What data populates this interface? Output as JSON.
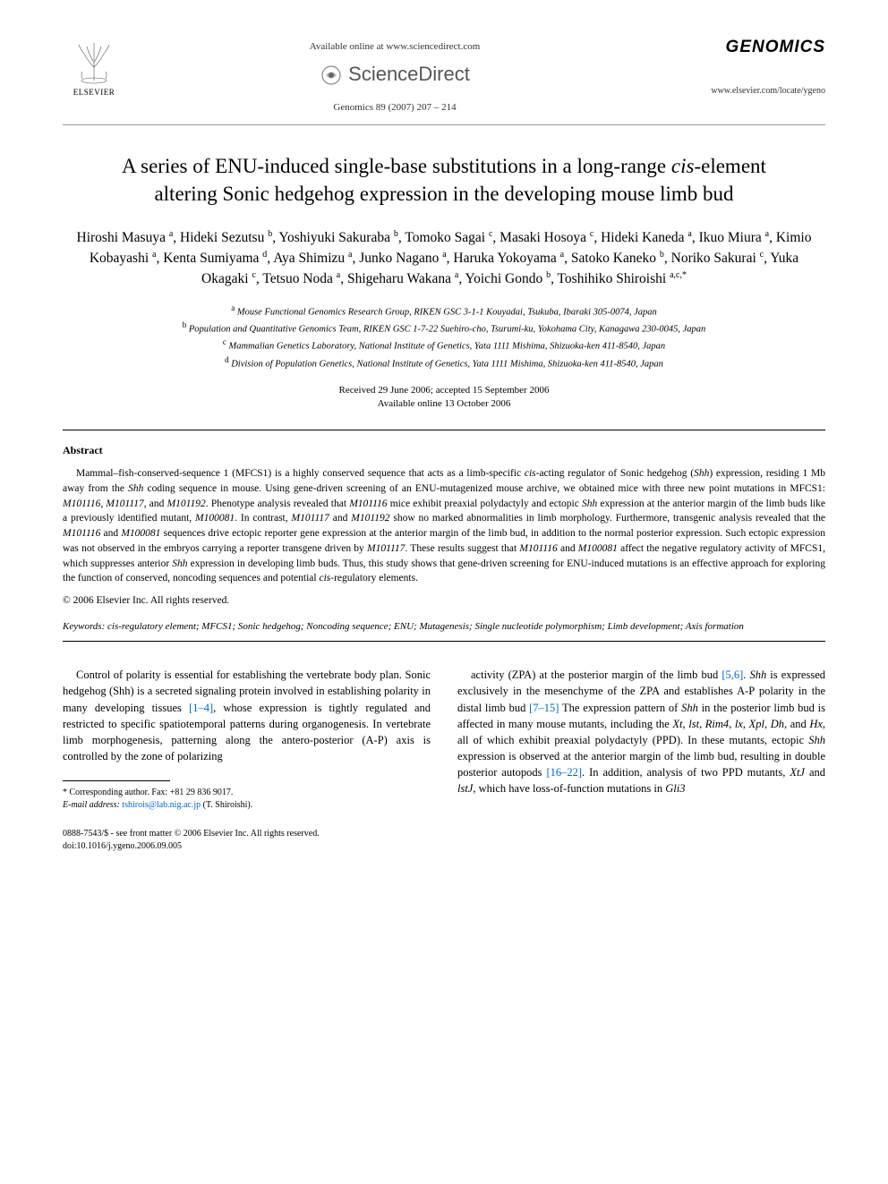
{
  "header": {
    "elsevier": "ELSEVIER",
    "available": "Available online at www.sciencedirect.com",
    "sd_name": "ScienceDirect",
    "journal_ref": "Genomics 89 (2007) 207 – 214",
    "journal_name": "GENOMICS",
    "journal_url": "www.elsevier.com/locate/ygeno"
  },
  "title_parts": {
    "pre": "A series of ENU-induced single-base substitutions in a long-range ",
    "ital": "cis",
    "post": "-element altering Sonic hedgehog expression in the developing mouse limb bud"
  },
  "authors_html": "Hiroshi Masuya <sup>a</sup>, Hideki Sezutsu <sup>b</sup>, Yoshiyuki Sakuraba <sup>b</sup>, Tomoko Sagai <sup>c</sup>, Masaki Hosoya <sup>c</sup>, Hideki Kaneda <sup>a</sup>, Ikuo Miura <sup>a</sup>, Kimio Kobayashi <sup>a</sup>, Kenta Sumiyama <sup>d</sup>, Aya Shimizu <sup>a</sup>, Junko Nagano <sup>a</sup>, Haruka Yokoyama <sup>a</sup>, Satoko Kaneko <sup>b</sup>, Noriko Sakurai <sup>c</sup>, Yuka Okagaki <sup>c</sup>, Tetsuo Noda <sup>a</sup>, Shigeharu Wakana <sup>a</sup>, Yoichi Gondo <sup>b</sup>, Toshihiko Shiroishi <sup>a,c,*</sup>",
  "affiliations": [
    {
      "sup": "a",
      "text": "Mouse Functional Genomics Research Group, RIKEN GSC 3-1-1 Kouyadai, Tsukuba, Ibaraki 305-0074, Japan"
    },
    {
      "sup": "b",
      "text": "Population and Quantitative Genomics Team, RIKEN GSC 1-7-22 Suehiro-cho, Tsurumi-ku, Yokohama City, Kanagawa 230-0045, Japan"
    },
    {
      "sup": "c",
      "text": "Mammalian Genetics Laboratory, National Institute of Genetics, Yata 1111 Mishima, Shizuoka-ken 411-8540, Japan"
    },
    {
      "sup": "d",
      "text": "Division of Population Genetics, National Institute of Genetics, Yata 1111 Mishima, Shizuoka-ken 411-8540, Japan"
    }
  ],
  "dates": {
    "received": "Received 29 June 2006; accepted 15 September 2006",
    "online": "Available online 13 October 2006"
  },
  "abstract": {
    "heading": "Abstract",
    "body_html": "Mammal–fish-conserved-sequence 1 (MFCS1) is a highly conserved sequence that acts as a limb-specific <span class='ital'>cis</span>-acting regulator of Sonic hedgehog (<span class='ital'>Shh</span>) expression, residing 1 Mb away from the <span class='ital'>Shh</span> coding sequence in mouse. Using gene-driven screening of an ENU-mutagenized mouse archive, we obtained mice with three new point mutations in MFCS1: <span class='ital'>M101116</span>, <span class='ital'>M101117</span>, and <span class='ital'>M101192</span>. Phenotype analysis revealed that <span class='ital'>M101116</span> mice exhibit preaxial polydactyly and ectopic <span class='ital'>Shh</span> expression at the anterior margin of the limb buds like a previously identified mutant, <span class='ital'>M100081</span>. In contrast, <span class='ital'>M101117</span> and <span class='ital'>M101192</span> show no marked abnormalities in limb morphology. Furthermore, transgenic analysis revealed that the <span class='ital'>M101116</span> and <span class='ital'>M100081</span> sequences drive ectopic reporter gene expression at the anterior margin of the limb bud, in addition to the normal posterior expression. Such ectopic expression was not observed in the embryos carrying a reporter transgene driven by <span class='ital'>M101117</span>. These results suggest that <span class='ital'>M101116</span> and <span class='ital'>M100081</span> affect the negative regulatory activity of MFCS1, which suppresses anterior <span class='ital'>Shh</span> expression in developing limb buds. Thus, this study shows that gene-driven screening for ENU-induced mutations is an effective approach for exploring the function of conserved, noncoding sequences and potential <span class='ital'>cis</span>-regulatory elements.",
    "copyright": "© 2006 Elsevier Inc. All rights reserved."
  },
  "keywords": "Keywords: cis-regulatory element; MFCS1; Sonic hedgehog; Noncoding sequence; ENU; Mutagenesis; Single nucleotide polymorphism; Limb development; Axis formation",
  "body": {
    "col1_html": "Control of polarity is essential for establishing the vertebrate body plan. Sonic hedgehog (Shh) is a secreted signaling protein involved in establishing polarity in many developing tissues <span class='ref-link'>[1–4]</span>, whose expression is tightly regulated and restricted to specific spatiotemporal patterns during organogenesis. In vertebrate limb morphogenesis, patterning along the antero-posterior (A-P) axis is controlled by the zone of polarizing",
    "col2_html": "activity (ZPA) at the posterior margin of the limb bud <span class='ref-link'>[5,6]</span>. <span class='ital'>Shh</span> is expressed exclusively in the mesenchyme of the ZPA and establishes A-P polarity in the distal limb bud <span class='ref-link'>[7–15]</span> The expression pattern of <span class='ital'>Shh</span> in the posterior limb bud is affected in many mouse mutants, including the <span class='ital'>Xt</span>, <span class='ital'>lst</span>, <span class='ital'>Rim4</span>, <span class='ital'>lx</span>, <span class='ital'>Xpl</span>, <span class='ital'>Dh</span>, and <span class='ital'>Hx</span>, all of which exhibit preaxial polydactyly (PPD). In these mutants, ectopic <span class='ital'>Shh</span> expression is observed at the anterior margin of the limb bud, resulting in double posterior autopods <span class='ref-link'>[16–22]</span>. In addition, analysis of two PPD mutants, <span class='ital'>XtJ</span> and <span class='ital'>lstJ</span>, which have loss-of-function mutations in <span class='ital'>Gli3</span>"
  },
  "footnotes": {
    "corr": "* Corresponding author. Fax: +81 29 836 9017.",
    "email_label": "E-mail address:",
    "email": "tshirois@lab.nig.ac.jp",
    "email_suffix": "(T. Shiroishi)."
  },
  "footer": {
    "line1": "0888-7543/$ - see front matter © 2006 Elsevier Inc. All rights reserved.",
    "line2": "doi:10.1016/j.ygeno.2006.09.005"
  },
  "colors": {
    "link": "#0066cc",
    "text": "#000000",
    "bg": "#ffffff"
  }
}
